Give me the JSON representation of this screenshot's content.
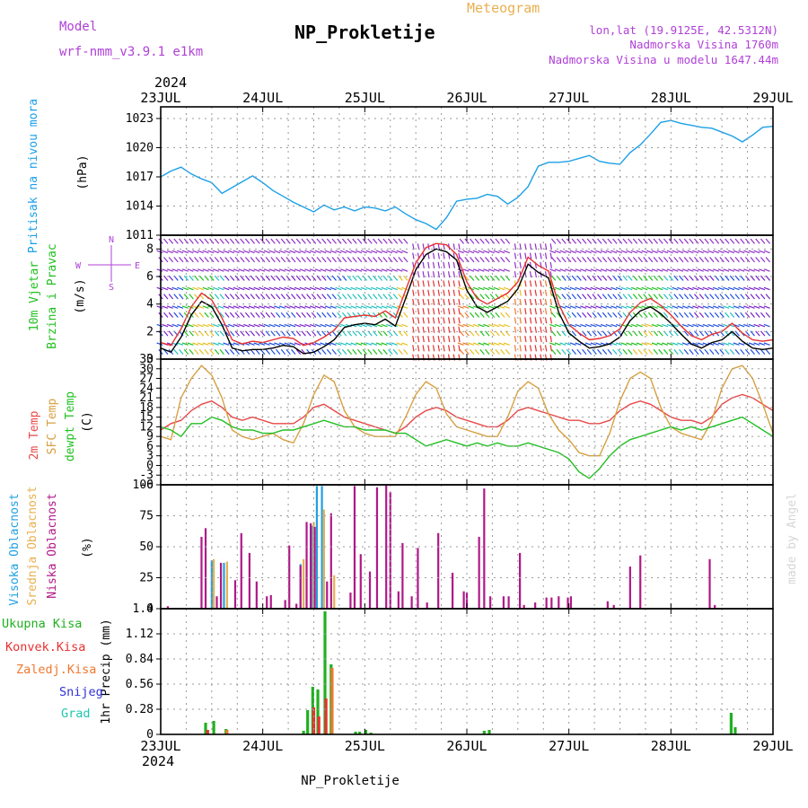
{
  "header": {
    "model_label": "Model",
    "model_name": "wrf-nmm_v3.9.1  e1km",
    "station": "NP_Prokletije",
    "product": "Meteogram",
    "coords": "lon,lat (19.9125E, 42.5312N)",
    "altitude": "Nadmorska Visina 1760m",
    "model_altitude": "Nadmorska Visina u modelu 1647.44m"
  },
  "footer": {
    "station": "NP_Prokletije",
    "watermark": "made by Angel"
  },
  "time_axis": {
    "year": "2024",
    "days": [
      "23JUL",
      "24JUL",
      "25JUL",
      "26JUL",
      "27JUL",
      "28JUL",
      "29JUL"
    ]
  },
  "colors": {
    "pressure": "#1aa0e8",
    "windspeed": "#000000",
    "gust": "#e83030",
    "t2m": "#e84848",
    "sfc": "#d8a040",
    "dew": "#20c020",
    "cloud_high": "#20a0e0",
    "cloud_mid": "#e8b050",
    "cloud_low": "#b01888",
    "precip_total": "#20b020",
    "precip_conv": "#e83030",
    "precip_frozen": "#f07830",
    "snow": "#3030d8",
    "hail": "#20c8b0",
    "panel_label_purple": "#b040d8"
  },
  "panels": {
    "pressure": {
      "labels": [
        "Pritisak na nivou mora",
        "(hPa)"
      ]
    },
    "wind": {
      "labels": [
        "10m Vjetar",
        "Brzina i Pravac",
        "(m/s)"
      ],
      "compass": [
        "W",
        "E",
        "N",
        "S"
      ]
    },
    "temp": {
      "labels": [
        "2m Temp",
        "SFC Temp",
        "dewpt Temp",
        "(C)"
      ]
    },
    "cloud": {
      "labels": [
        "Visoka Oblacnost",
        "Srednja Oblacnost",
        "Niska Oblacnost",
        "(%)"
      ]
    },
    "precip": {
      "labels": [
        "1hr Precip (mm)"
      ],
      "legend": [
        "Ukupna Kisa",
        "Konvek.Kisa",
        "Zaledj.Kisa",
        "Snijeg",
        "Grad"
      ]
    }
  },
  "chart_data": [
    {
      "type": "line",
      "panel": "pressure",
      "y_ticks": [
        1011,
        1014,
        1017,
        1020,
        1023
      ],
      "ylim": [
        1011,
        1024.2
      ],
      "grid": true,
      "x_days": [
        0,
        0.1,
        0.2,
        0.3,
        0.4,
        0.5,
        0.6,
        0.7,
        0.8,
        0.9,
        1.0,
        1.1,
        1.2,
        1.3,
        1.4,
        1.5,
        1.6,
        1.7,
        1.8,
        1.9,
        2.0,
        2.1,
        2.2,
        2.3,
        2.4,
        2.5,
        2.6,
        2.7,
        2.8,
        2.9,
        3.0,
        3.1,
        3.2,
        3.3,
        3.4,
        3.5,
        3.6,
        3.7,
        3.8,
        3.9,
        4.0,
        4.1,
        4.2,
        4.3,
        4.4,
        4.5,
        4.6,
        4.7,
        4.8,
        4.9,
        5.0,
        5.1,
        5.2,
        5.3,
        5.4,
        5.5,
        5.6,
        5.7,
        5.8,
        5.9,
        6.0
      ],
      "series": [
        {
          "color_key": "pressure",
          "values": [
            1017.0,
            1017.6,
            1018.0,
            1017.3,
            1016.8,
            1016.4,
            1015.3,
            1015.9,
            1016.5,
            1017.1,
            1016.4,
            1015.6,
            1015.0,
            1014.4,
            1013.9,
            1013.4,
            1014.1,
            1013.6,
            1013.9,
            1013.5,
            1013.9,
            1013.8,
            1013.5,
            1013.9,
            1013.2,
            1012.6,
            1012.2,
            1011.6,
            1012.8,
            1014.5,
            1014.7,
            1014.8,
            1015.2,
            1015.0,
            1014.2,
            1014.9,
            1016.0,
            1018.1,
            1018.5,
            1018.5,
            1018.6,
            1018.9,
            1019.2,
            1018.6,
            1018.4,
            1018.3,
            1019.5,
            1020.3,
            1021.4,
            1022.6,
            1022.8,
            1022.5,
            1022.3,
            1022.1,
            1022.0,
            1021.6,
            1021.2,
            1020.6,
            1021.3,
            1022.1,
            1022.2
          ]
        }
      ]
    },
    {
      "type": "line",
      "panel": "wind",
      "y_ticks": [
        0,
        2,
        4,
        6,
        8
      ],
      "ylim": [
        0,
        9
      ],
      "grid": true,
      "x_days": [
        0,
        0.1,
        0.2,
        0.3,
        0.4,
        0.5,
        0.6,
        0.7,
        0.8,
        0.9,
        1.0,
        1.1,
        1.2,
        1.3,
        1.4,
        1.5,
        1.6,
        1.7,
        1.8,
        1.9,
        2.0,
        2.1,
        2.2,
        2.3,
        2.4,
        2.5,
        2.6,
        2.7,
        2.8,
        2.9,
        3.0,
        3.1,
        3.2,
        3.3,
        3.4,
        3.5,
        3.6,
        3.7,
        3.8,
        3.9,
        4.0,
        4.1,
        4.2,
        4.3,
        4.4,
        4.5,
        4.6,
        4.7,
        4.8,
        4.9,
        5.0,
        5.1,
        5.2,
        5.3,
        5.4,
        5.5,
        5.6,
        5.7,
        5.8,
        5.9,
        6.0
      ],
      "series": [
        {
          "name": "speed",
          "color_key": "windspeed",
          "values": [
            0.8,
            0.5,
            1.6,
            3.2,
            4.2,
            3.8,
            2.5,
            0.8,
            0.6,
            0.7,
            0.7,
            0.8,
            1.0,
            0.9,
            0.4,
            0.5,
            0.9,
            1.4,
            2.3,
            2.5,
            2.6,
            2.5,
            2.9,
            2.4,
            4.4,
            6.5,
            7.6,
            8.0,
            7.8,
            7.2,
            5.0,
            3.8,
            3.4,
            3.8,
            4.2,
            5.1,
            6.9,
            6.3,
            5.9,
            3.4,
            1.9,
            1.3,
            0.8,
            0.9,
            1.1,
            1.6,
            2.8,
            3.5,
            3.8,
            3.3,
            2.6,
            1.8,
            1.1,
            0.8,
            1.2,
            1.4,
            2.0,
            1.3,
            0.8,
            0.7,
            0.8
          ]
        },
        {
          "name": "gust",
          "color_key": "gust",
          "values": [
            1.2,
            1.0,
            2.2,
            3.8,
            4.8,
            4.3,
            3.0,
            1.4,
            1.1,
            1.3,
            1.2,
            1.4,
            1.6,
            1.5,
            1.0,
            1.2,
            1.6,
            2.1,
            3.0,
            3.1,
            3.2,
            3.1,
            3.5,
            3.0,
            5.0,
            7.0,
            8.1,
            8.4,
            8.3,
            7.6,
            5.6,
            4.4,
            4.0,
            4.4,
            4.8,
            5.6,
            7.4,
            6.8,
            6.4,
            4.0,
            2.5,
            1.9,
            1.4,
            1.5,
            1.7,
            2.2,
            3.4,
            4.1,
            4.4,
            3.9,
            3.2,
            2.4,
            1.7,
            1.4,
            1.8,
            2.0,
            2.6,
            1.9,
            1.4,
            1.3,
            1.4
          ]
        }
      ]
    },
    {
      "type": "line",
      "panel": "temp",
      "y_ticks": [
        -6,
        -3,
        0,
        3,
        6,
        9,
        12,
        15,
        18,
        21,
        24,
        27,
        30,
        33
      ],
      "ylim": [
        -6,
        33
      ],
      "grid": true,
      "x_days": [
        0,
        0.1,
        0.2,
        0.3,
        0.4,
        0.5,
        0.6,
        0.7,
        0.8,
        0.9,
        1.0,
        1.1,
        1.2,
        1.3,
        1.4,
        1.5,
        1.6,
        1.7,
        1.8,
        1.9,
        2.0,
        2.1,
        2.2,
        2.3,
        2.4,
        2.5,
        2.6,
        2.7,
        2.8,
        2.9,
        3.0,
        3.1,
        3.2,
        3.3,
        3.4,
        3.5,
        3.6,
        3.7,
        3.8,
        3.9,
        4.0,
        4.1,
        4.2,
        4.3,
        4.4,
        4.5,
        4.6,
        4.7,
        4.8,
        4.9,
        5.0,
        5.1,
        5.2,
        5.3,
        5.4,
        5.5,
        5.6,
        5.7,
        5.8,
        5.9,
        6.0
      ],
      "series": [
        {
          "name": "2m",
          "color_key": "t2m",
          "values": [
            11,
            13,
            14,
            17,
            19,
            20,
            18,
            15,
            14,
            15,
            14,
            13,
            13,
            13,
            15,
            18,
            19,
            17,
            15,
            14,
            13,
            12,
            11,
            10,
            12,
            15,
            17,
            18,
            17,
            15,
            14,
            13,
            12,
            12,
            14,
            17,
            18,
            17,
            16,
            15,
            14,
            14,
            13,
            13,
            14,
            17,
            19,
            20,
            19,
            17,
            15,
            14,
            14,
            13,
            15,
            19,
            21,
            22,
            21,
            19,
            17
          ]
        },
        {
          "name": "sfc",
          "color_key": "sfc",
          "values": [
            9,
            8,
            21,
            27,
            31,
            28,
            21,
            11,
            9,
            8,
            9,
            10,
            8,
            7,
            13,
            22,
            28,
            26,
            17,
            12,
            10,
            9,
            9,
            9,
            15,
            22,
            26,
            24,
            16,
            12,
            11,
            10,
            9,
            9,
            15,
            23,
            26,
            24,
            16,
            11,
            8,
            4,
            3,
            3,
            10,
            20,
            27,
            29,
            27,
            18,
            12,
            10,
            9,
            8,
            14,
            24,
            30,
            31,
            27,
            19,
            10
          ]
        },
        {
          "name": "dew",
          "color_key": "dew",
          "values": [
            12,
            11,
            9,
            13,
            13,
            15,
            14,
            12,
            11,
            11,
            10,
            10,
            11,
            11,
            12,
            13,
            14,
            13,
            12,
            12,
            11,
            11,
            11,
            10,
            10,
            8,
            6,
            7,
            8,
            7,
            6,
            7,
            6,
            7,
            6,
            6,
            7,
            6,
            5,
            4,
            2,
            -2,
            -4,
            -1,
            3,
            6,
            8,
            9,
            10,
            11,
            12,
            11,
            12,
            11,
            12,
            13,
            14,
            15,
            13,
            11,
            9
          ]
        }
      ]
    },
    {
      "type": "bar",
      "panel": "cloud",
      "y_ticks": [
        0,
        25,
        50,
        75,
        100
      ],
      "ylim": [
        0,
        100
      ],
      "grid": true,
      "series": [
        {
          "name": "high",
          "color_key": "cloud_high",
          "x_days": [
            0.5,
            0.62,
            1.37,
            1.48,
            1.53,
            1.58
          ],
          "values": [
            39,
            37,
            36,
            67,
            99,
            99
          ]
        },
        {
          "name": "mid",
          "color_key": "cloud_mid",
          "x_days": [
            0.52,
            0.65,
            1.4,
            1.5,
            1.6,
            1.7
          ],
          "values": [
            40,
            38,
            40,
            70,
            80,
            27
          ]
        },
        {
          "name": "low",
          "color_key": "cloud_low",
          "x_days": [
            0.07,
            0.4,
            0.44,
            0.55,
            0.59,
            0.73,
            0.79,
            0.87,
            0.94,
            1.04,
            1.08,
            1.22,
            1.26,
            1.33,
            1.37,
            1.43,
            1.47,
            1.51,
            1.63,
            1.67,
            1.86,
            1.9,
            1.96,
            2.05,
            2.12,
            2.21,
            2.25,
            2.33,
            2.37,
            2.46,
            2.52,
            2.61,
            2.72,
            2.86,
            2.97,
            3.0,
            3.12,
            3.17,
            3.23,
            3.36,
            3.41,
            3.52,
            3.56,
            3.67,
            3.78,
            3.83,
            3.9,
            3.99,
            4.02,
            4.38,
            4.44,
            4.6,
            4.7,
            5.38,
            5.43
          ],
          "values": [
            2,
            58,
            65,
            10,
            37,
            23,
            61,
            45,
            22,
            10,
            11,
            7,
            51,
            4,
            35,
            70,
            69,
            66,
            22,
            77,
            13,
            99,
            44,
            30,
            98,
            100,
            94,
            14,
            53,
            10,
            49,
            5,
            61,
            29,
            14,
            13,
            58,
            97,
            10,
            10,
            10,
            45,
            3,
            5,
            9,
            9,
            10,
            9,
            10,
            6,
            3,
            34,
            43,
            40,
            3
          ]
        }
      ]
    },
    {
      "type": "bar",
      "panel": "precip",
      "y_ticks": [
        0,
        0.28,
        0.56,
        0.84,
        1.12,
        1.4
      ],
      "ylim": [
        0,
        1.4
      ],
      "grid": true,
      "series": [
        {
          "name": "total",
          "color_key": "precip_total",
          "x_days": [
            0.44,
            0.52,
            0.64,
            1.4,
            1.44,
            1.49,
            1.54,
            1.61,
            1.67,
            1.91,
            1.95,
            2.01,
            2.06,
            3.17,
            3.22,
            4.69,
            4.76,
            5.59,
            5.63
          ],
          "values": [
            0.13,
            0.15,
            0.06,
            0.04,
            0.27,
            0.53,
            0.5,
            1.37,
            0.78,
            0.03,
            0.03,
            0.05,
            0.02,
            0.04,
            0.05,
            0.01,
            0.01,
            0.24,
            0.08
          ]
        },
        {
          "name": "conv",
          "color_key": "precip_conv",
          "x_days": [
            0.46,
            1.5,
            1.55,
            1.62
          ],
          "values": [
            0.05,
            0.3,
            0.2,
            0.4
          ]
        },
        {
          "name": "frozen",
          "color_key": "precip_frozen",
          "x_days": [
            0.65,
            1.68
          ],
          "values": [
            0.05,
            0.74
          ]
        }
      ]
    }
  ]
}
